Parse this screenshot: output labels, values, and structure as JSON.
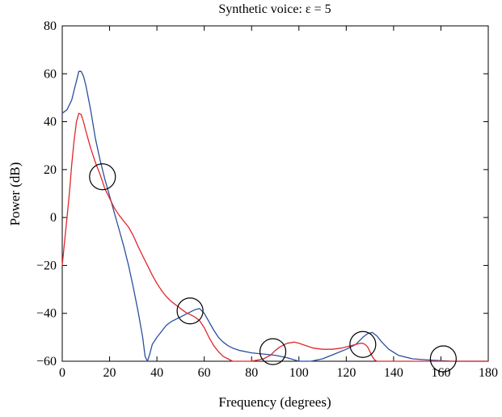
{
  "chart_data": {
    "type": "line",
    "title": "Synthetic voice: ε = 5",
    "xlabel": "Frequency (degrees)",
    "ylabel": "Power  (dB)",
    "xlim": [
      0,
      180
    ],
    "ylim": [
      -60,
      80
    ],
    "xticks": [
      "0",
      "20",
      "40",
      "60",
      "80",
      "100",
      "120",
      "140",
      "160",
      "180"
    ],
    "yticks": [
      "−60",
      "−40",
      "−20",
      "0",
      "20",
      "40",
      "60",
      "80"
    ],
    "grid": false,
    "series": [
      {
        "color": "#2b4f9e",
        "x": [
          0,
          2,
          4,
          5,
          6,
          7,
          8,
          9,
          10,
          12,
          14,
          16,
          18,
          20,
          22,
          24,
          26,
          28,
          30,
          32,
          34,
          35,
          36,
          37,
          38,
          40,
          42,
          44,
          46,
          48,
          50,
          52,
          54,
          56,
          58,
          60,
          62,
          64,
          66,
          68,
          70,
          72,
          75,
          80,
          85,
          90,
          95,
          100,
          105,
          110,
          115,
          120,
          124,
          127,
          129,
          131,
          133,
          135,
          138,
          142,
          148,
          155,
          165,
          175,
          180
        ],
        "y": [
          43.5,
          45,
          49,
          53,
          57,
          61,
          61,
          59,
          55,
          45,
          33,
          24,
          16,
          9,
          2,
          -5,
          -12,
          -20,
          -29,
          -39,
          -50,
          -58,
          -60,
          -57,
          -53,
          -50,
          -47.5,
          -45,
          -43.5,
          -42.5,
          -41.5,
          -40.5,
          -39.5,
          -38.5,
          -38,
          -40,
          -43.5,
          -47,
          -50,
          -52,
          -53.5,
          -54.5,
          -55.5,
          -56.5,
          -57,
          -57.5,
          -58.5,
          -60,
          -60,
          -59,
          -57,
          -55,
          -53,
          -50,
          -48.5,
          -48,
          -49.5,
          -52,
          -55,
          -57.5,
          -59,
          -59.5,
          -60,
          -60,
          -60
        ]
      },
      {
        "color": "#e3262b",
        "x": [
          0,
          1,
          2,
          3,
          4,
          5,
          6,
          7,
          8,
          9,
          10,
          12,
          14,
          16,
          18,
          20,
          22,
          24,
          26,
          28,
          30,
          32,
          34,
          36,
          38,
          40,
          42,
          44,
          46,
          48,
          50,
          52,
          54,
          56,
          58,
          60,
          62,
          64,
          66,
          68,
          70,
          72,
          75,
          80,
          85,
          88,
          90,
          92,
          95,
          98,
          100,
          103,
          106,
          110,
          114,
          118,
          120,
          122,
          124,
          126,
          127,
          128,
          129,
          130,
          131,
          132,
          133,
          135,
          140,
          145,
          150,
          160,
          170,
          180
        ],
        "y": [
          -20,
          -10,
          0,
          10,
          22,
          32,
          40,
          43.5,
          43,
          40,
          36,
          29,
          23,
          18,
          12,
          8,
          4,
          1,
          -1.5,
          -4,
          -7.5,
          -12,
          -16,
          -20,
          -24,
          -27.5,
          -30.5,
          -33,
          -35,
          -36.5,
          -38,
          -39.5,
          -40.5,
          -41.5,
          -43,
          -46,
          -50,
          -53.5,
          -56,
          -58,
          -59,
          -60,
          -60,
          -60,
          -59,
          -57.5,
          -55.5,
          -54,
          -52.5,
          -52,
          -52.5,
          -53.5,
          -54.5,
          -55,
          -55,
          -54.5,
          -54,
          -53.5,
          -53,
          -52.5,
          -52.5,
          -53,
          -54,
          -56,
          -58,
          -59.5,
          -60,
          -60,
          -60,
          -60,
          -60,
          -60,
          -60,
          -60
        ]
      }
    ],
    "annotations": [
      {
        "shape": "circle",
        "x": 17,
        "y": 17
      },
      {
        "shape": "circle",
        "x": 54,
        "y": -39
      },
      {
        "shape": "circle",
        "x": 89,
        "y": -56
      },
      {
        "shape": "circle",
        "x": 127,
        "y": -53
      },
      {
        "shape": "circle",
        "x": 161,
        "y": -59
      }
    ]
  }
}
